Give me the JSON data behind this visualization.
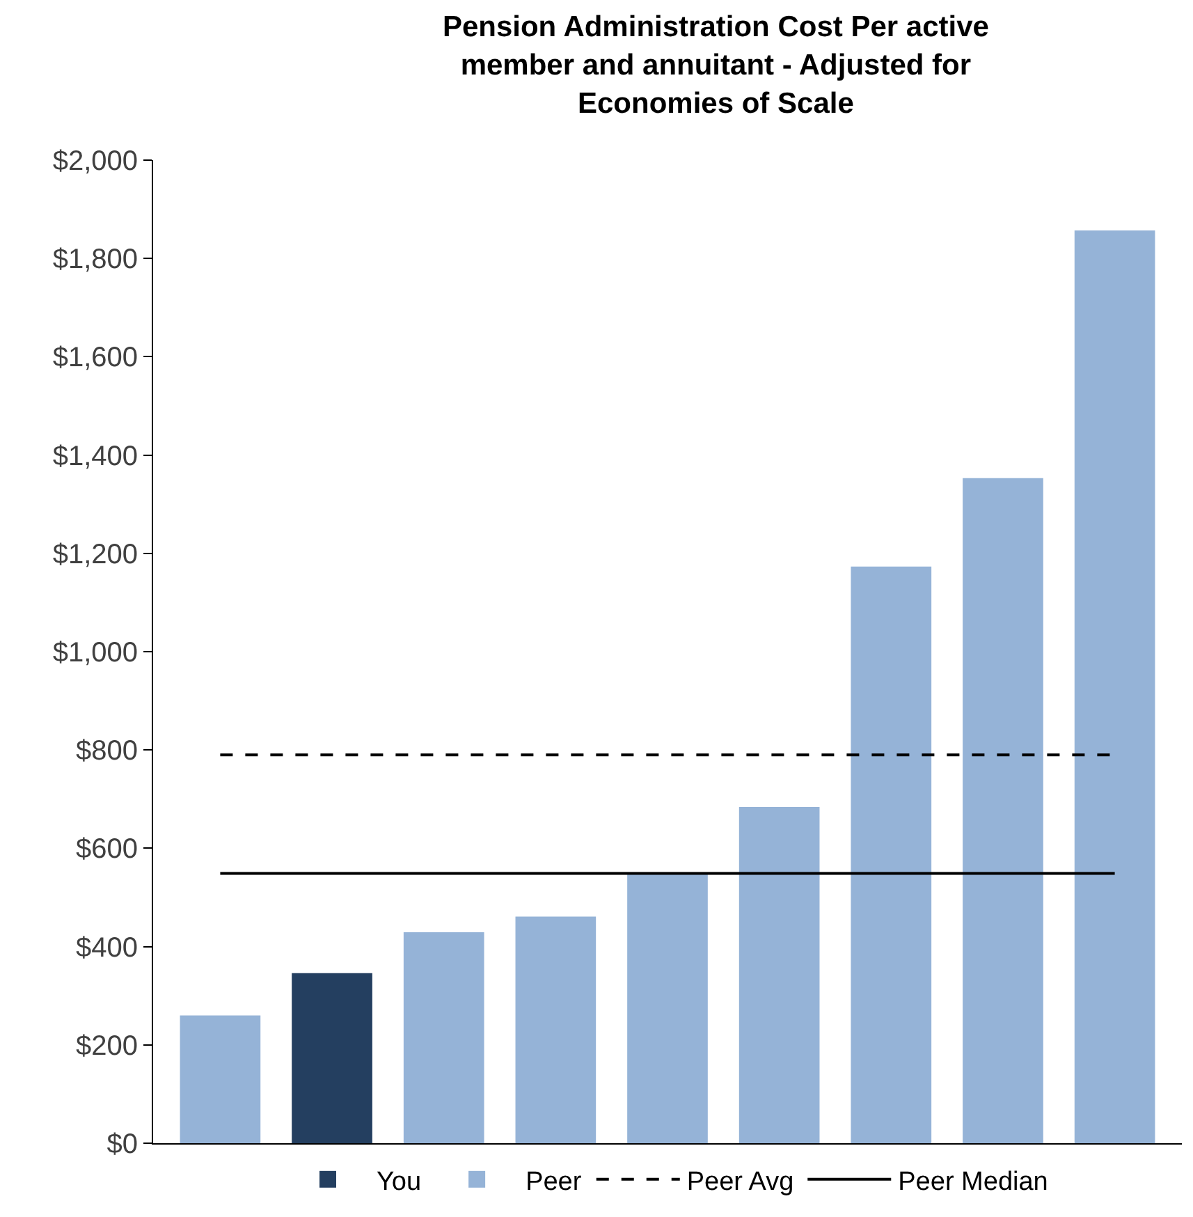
{
  "chart_data": {
    "type": "bar",
    "title": "Pension Administration Cost Per active member and annuitant - Adjusted for Economies of Scale",
    "categories": [
      null,
      null,
      null,
      null,
      null,
      null,
      null,
      null,
      null
    ],
    "series": [
      {
        "name": "You",
        "color": "#243f60",
        "values": [
          null,
          346,
          null,
          null,
          null,
          null,
          null,
          null,
          null
        ]
      },
      {
        "name": "Peer",
        "color": "#95b3d7",
        "values": [
          260,
          null,
          429,
          461,
          550,
          684,
          1173,
          1353,
          1857
        ]
      }
    ],
    "ref_lines": [
      {
        "axis": "y",
        "value": 790,
        "label": "Peer Avg",
        "color": "#000000",
        "line_style": "dashed"
      },
      {
        "axis": "y",
        "value": 549,
        "label": "Peer Median",
        "color": "#000000",
        "line_style": "solid"
      }
    ],
    "ylim": [
      0,
      2000
    ],
    "yticks": [
      {
        "value": 0,
        "label": "$0"
      },
      {
        "value": 200,
        "label": "$200"
      },
      {
        "value": 400,
        "label": "$400"
      },
      {
        "value": 600,
        "label": "$600"
      },
      {
        "value": 800,
        "label": "$800"
      },
      {
        "value": 1000,
        "label": "$1,000"
      },
      {
        "value": 1200,
        "label": "$1,200"
      },
      {
        "value": 1400,
        "label": "$1,400"
      },
      {
        "value": 1600,
        "label": "$1,600"
      },
      {
        "value": 1800,
        "label": "$1,800"
      },
      {
        "value": 2000,
        "label": "$2,000"
      }
    ],
    "tick_labels": "y",
    "legend": "bottom"
  }
}
